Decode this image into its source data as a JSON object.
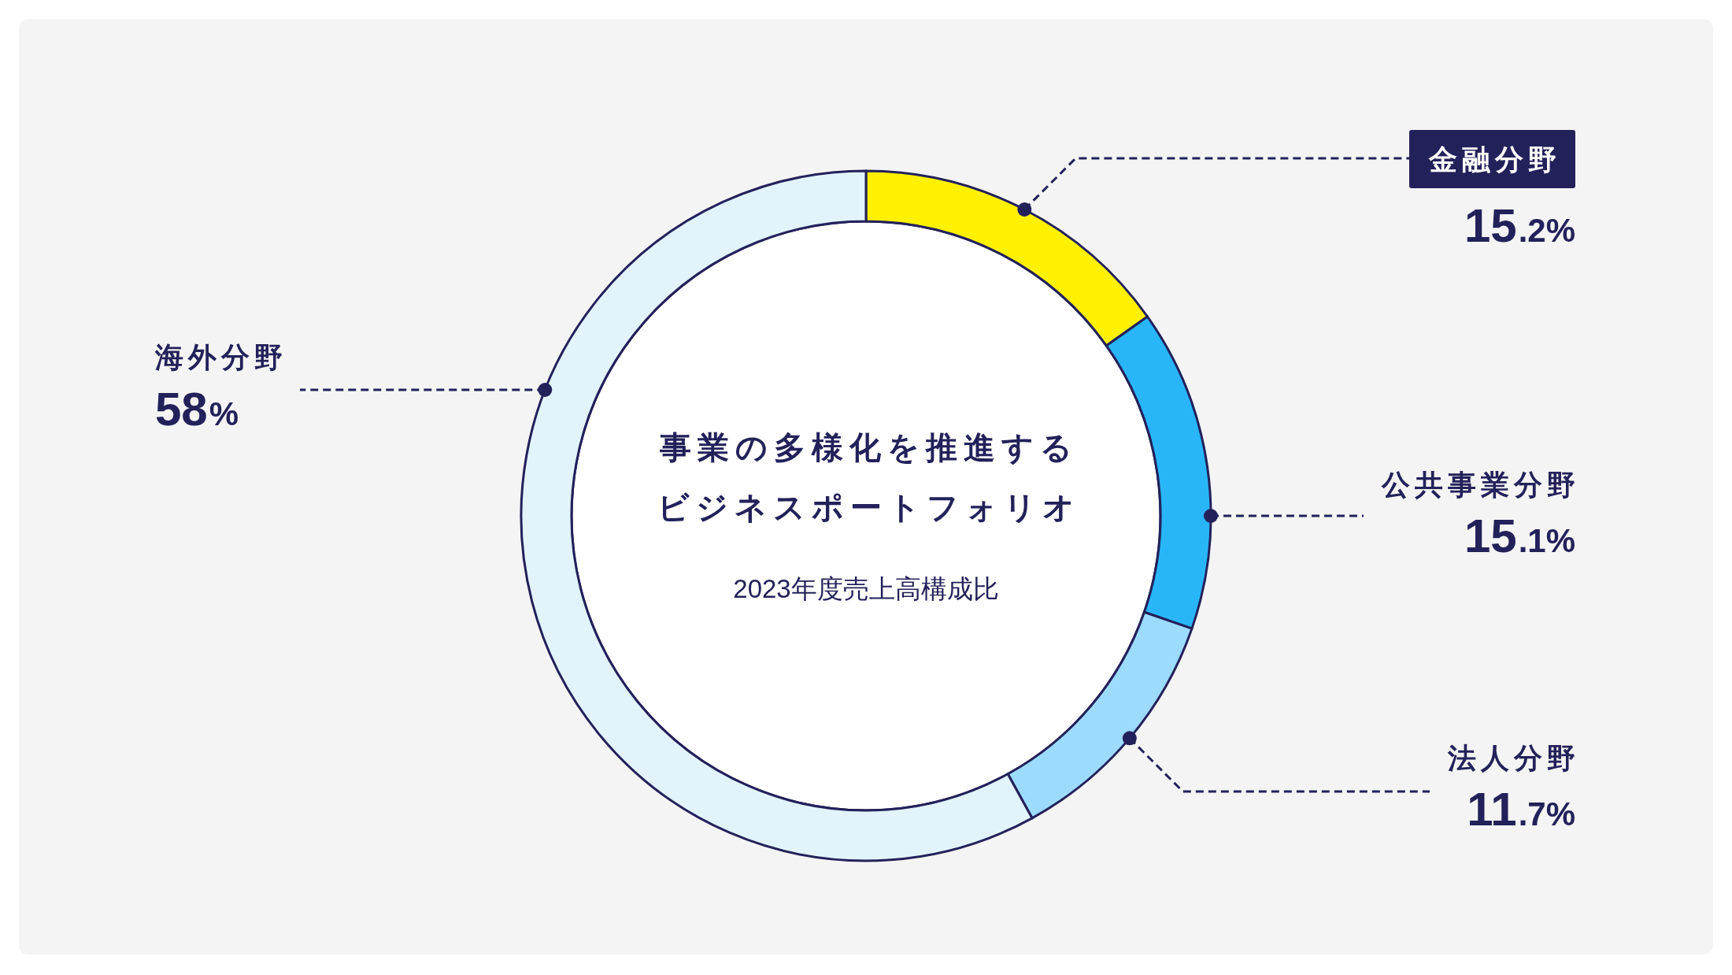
{
  "chart_data": {
    "type": "donut",
    "title": "事業の多様化を推進するビジネスポートフォリオ",
    "subtitle": "2023年度売上高構成比",
    "categories": [
      "金融分野",
      "公共事業分野",
      "法人分野",
      "海外分野"
    ],
    "values": [
      15.2,
      15.1,
      11.7,
      58
    ],
    "colors": [
      "#fff100",
      "#29b6f9",
      "#9ddbfd",
      "#e2f3fc"
    ],
    "value_labels": [
      "15.2%",
      "15.1%",
      "11.7%",
      "58%"
    ]
  }
}
